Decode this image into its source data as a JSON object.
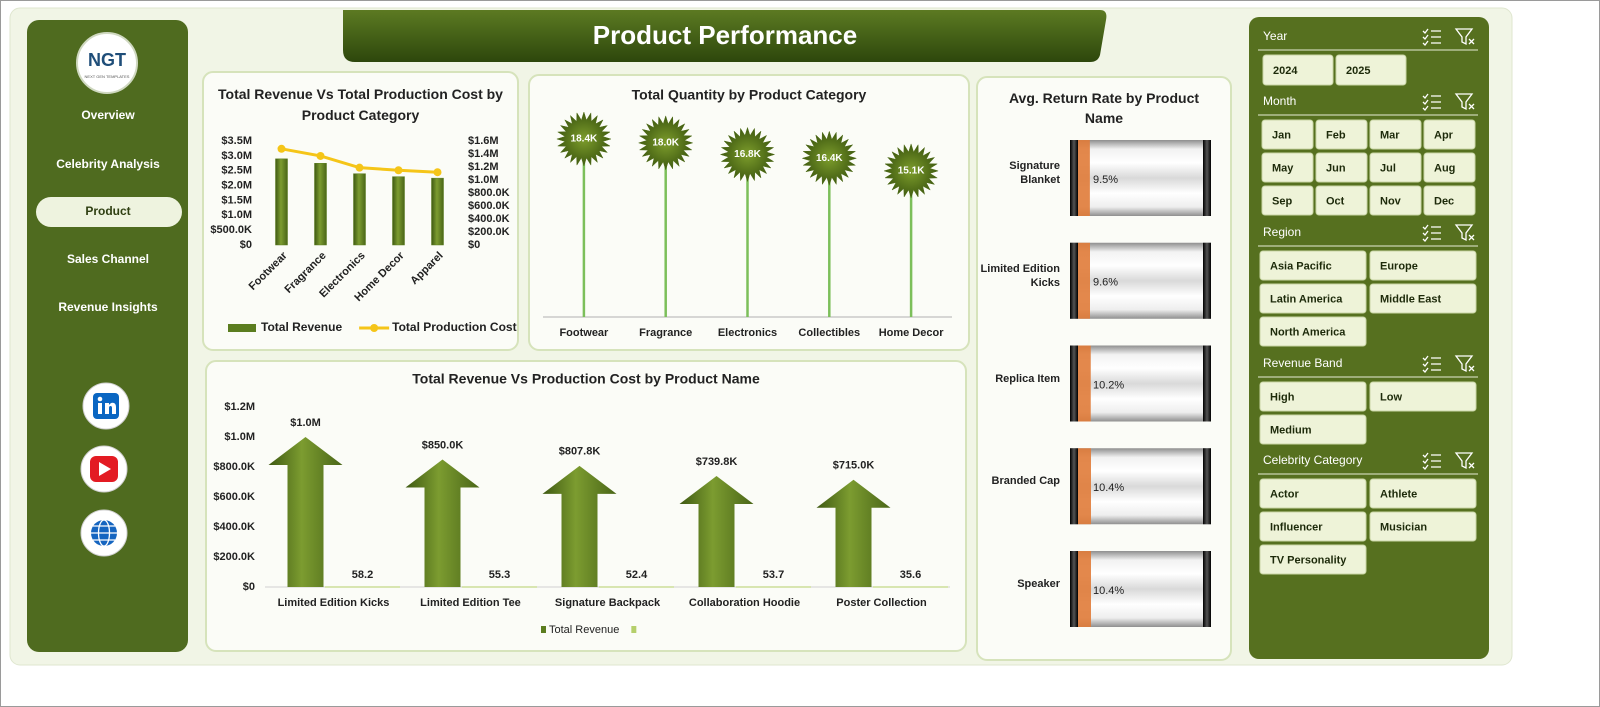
{
  "header": {
    "title": "Product Performance"
  },
  "sidebar": {
    "logo": "NGT",
    "logo_subtitle": "NEXT GEN TEMPLATES",
    "nav": [
      "Overview",
      "Celebrity Analysis",
      "Product",
      "Sales Channel",
      "Revenue Insights"
    ],
    "active": 2
  },
  "chart_data": [
    {
      "type": "combo",
      "title": "Total Revenue Vs Total Production Cost by Product Category",
      "categories": [
        "Footwear",
        "Fragrance",
        "Electronics",
        "Home Decor",
        "Apparel"
      ],
      "series": [
        {
          "name": "Total Revenue",
          "color": "#5b7d1f",
          "values": [
            2900000,
            2750000,
            2400000,
            2300000,
            2250000
          ]
        },
        {
          "name": "Total Production Cost",
          "color": "#f5c518",
          "type": "line",
          "axis": "y2",
          "values": [
            1480000,
            1370000,
            1190000,
            1150000,
            1120000
          ]
        }
      ],
      "ylim": [
        0,
        3500000
      ],
      "yticks": [
        {
          "value": 0,
          "label": "$0"
        },
        {
          "value": 500000,
          "label": "$500.0K"
        },
        {
          "value": 1000000,
          "label": "$1.0M"
        },
        {
          "value": 1500000,
          "label": "$1.5M"
        },
        {
          "value": 2000000,
          "label": "$2.0M"
        },
        {
          "value": 2500000,
          "label": "$2.5M"
        },
        {
          "value": 3000000,
          "label": "$3.0M"
        },
        {
          "value": 3500000,
          "label": "$3.5M"
        }
      ],
      "y2lim": [
        0,
        1600000
      ],
      "y2ticks": [
        {
          "value": 0,
          "label": "$0"
        },
        {
          "value": 200000,
          "label": "$200.0K"
        },
        {
          "value": 400000,
          "label": "$400.0K"
        },
        {
          "value": 600000,
          "label": "$600.0K"
        },
        {
          "value": 800000,
          "label": "$800.0K"
        },
        {
          "value": 1000000,
          "label": "$1.0M"
        },
        {
          "value": 1200000,
          "label": "$1.2M"
        },
        {
          "value": 1400000,
          "label": "$1.4M"
        },
        {
          "value": 1600000,
          "label": "$1.6M"
        }
      ],
      "legend": "bottom"
    },
    {
      "type": "lollipop",
      "title": "Total Quantity by Product Category",
      "categories": [
        "Footwear",
        "Fragrance",
        "Electronics",
        "Collectibles",
        "Home Decor"
      ],
      "values": [
        18400,
        18000,
        16800,
        16400,
        15100
      ],
      "value_labels": [
        "18.4K",
        "18.0K",
        "16.8K",
        "16.4K",
        "15.1K"
      ],
      "color": "#4d6b16"
    },
    {
      "type": "progress",
      "title": "Avg. Return Rate by Product Name",
      "categories": [
        "Signature Blanket",
        "Limited Edition Kicks",
        "Replica Item",
        "Branded Cap",
        "Speaker"
      ],
      "values": [
        9.5,
        9.6,
        10.2,
        10.4,
        10.4
      ],
      "value_labels": [
        "9.5%",
        "9.6%",
        "10.2%",
        "10.4%",
        "10.4%"
      ],
      "xlim": [
        0,
        100
      ],
      "color": "#e07b39"
    },
    {
      "type": "arrow",
      "title": "Total Revenue Vs Production Cost by Product Name",
      "categories": [
        "Limited Edition Kicks",
        "Limited Edition Tee",
        "Signature Backpack",
        "Collaboration Hoodie",
        "Poster Collection"
      ],
      "series": [
        {
          "name": "Total Revenue",
          "color": "#5b7d1f",
          "values": [
            1000000,
            850000,
            807800,
            739800,
            715000
          ],
          "value_labels": [
            "$1.0M",
            "$850.0K",
            "$807.8K",
            "$739.8K",
            "$715.0K"
          ]
        },
        {
          "color": "#b5cf6b",
          "values": [
            58.2,
            55.3,
            52.4,
            53.7,
            35.6
          ]
        }
      ],
      "ylim": [
        0,
        1200000
      ],
      "yticks": [
        {
          "value": 0,
          "label": "$0"
        },
        {
          "value": 200000,
          "label": "$200.0K"
        },
        {
          "value": 400000,
          "label": "$400.0K"
        },
        {
          "value": 600000,
          "label": "$600.0K"
        },
        {
          "value": 800000,
          "label": "$800.0K"
        },
        {
          "value": 1000000,
          "label": "$1.0M"
        },
        {
          "value": 1200000,
          "label": "$1.2M"
        }
      ],
      "legend": "bottom"
    }
  ],
  "slicers": [
    {
      "title": "Year",
      "items": [
        "2024",
        "2025"
      ]
    },
    {
      "title": "Month",
      "items": [
        "Jan",
        "Feb",
        "Mar",
        "Apr",
        "May",
        "Jun",
        "Jul",
        "Aug",
        "Sep",
        "Oct",
        "Nov",
        "Dec"
      ]
    },
    {
      "title": "Region",
      "items": [
        "Asia Pacific",
        "Europe",
        "Latin America",
        "Middle East",
        "North America"
      ]
    },
    {
      "title": "Revenue Band",
      "items": [
        "High",
        "Low",
        "Medium"
      ]
    },
    {
      "title": "Celebrity Category",
      "items": [
        "Actor",
        "Athlete",
        "Influencer",
        "Musician",
        "TV Personality"
      ]
    }
  ]
}
